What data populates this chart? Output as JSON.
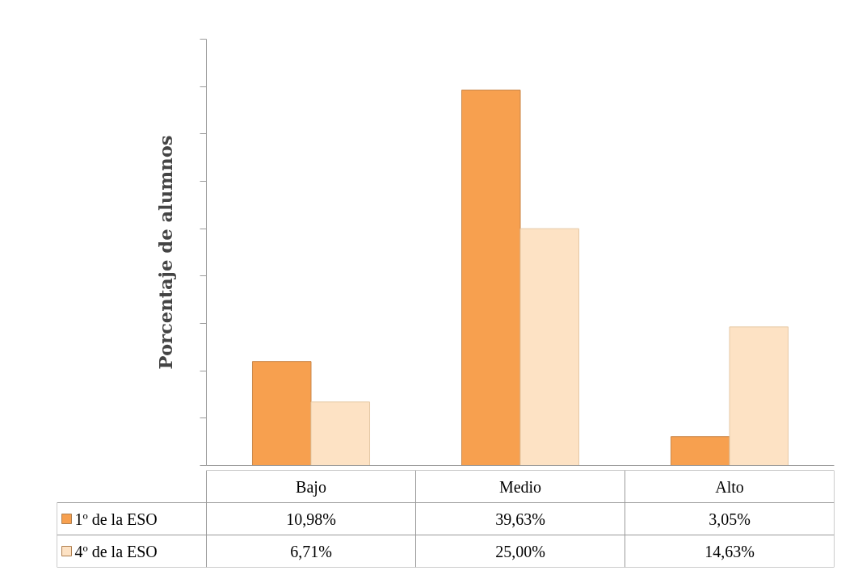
{
  "chart_data": {
    "type": "bar",
    "ylabel": "Porcentaje de alumnos",
    "categories": [
      "Bajo",
      "Medio",
      "Alto"
    ],
    "series": [
      {
        "name": "1º de la ESO",
        "color": "#f7a04f",
        "values": [
          10.98,
          39.63,
          3.05
        ],
        "value_labels": [
          "10,98%",
          "39,63%",
          "3,05%"
        ]
      },
      {
        "name": "4º de la ESO",
        "color": "#fde2c4",
        "values": [
          6.71,
          25.0,
          14.63
        ],
        "value_labels": [
          "6,71%",
          "25,00%",
          "14,63%"
        ]
      }
    ],
    "grid": false,
    "legend": "bottom"
  }
}
